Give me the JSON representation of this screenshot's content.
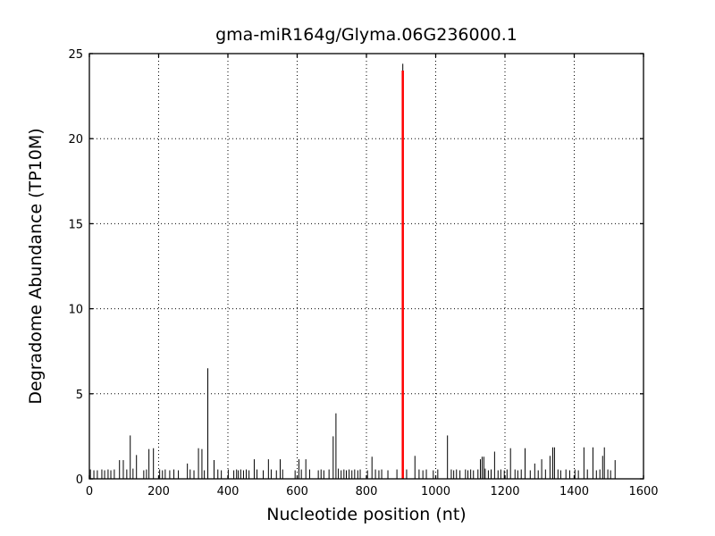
{
  "figure": {
    "title": "gma-miR164g/Glyma.06G236000.1",
    "xlabel": "Nucleotide position (nt)",
    "ylabel": "Degradome Abundance (TP10M)"
  },
  "chart_data": {
    "type": "bar",
    "title": "gma-miR164g/Glyma.06G236000.1",
    "xlabel": "Nucleotide position (nt)",
    "ylabel": "Degradome Abundance (TP10M)",
    "xlim": [
      0,
      1600
    ],
    "ylim": [
      0,
      25
    ],
    "x_ticks": [
      0,
      200,
      400,
      600,
      800,
      1000,
      1200,
      1400,
      1600
    ],
    "y_ticks": [
      0,
      5,
      10,
      15,
      20,
      25
    ],
    "grid": true,
    "grid_style": "dotted",
    "bar_color": "#000000",
    "axis_color": "#000000",
    "background_color": "#ffffff",
    "highlight_color": "#ff0000",
    "highlight": {
      "x": 905,
      "value": 24.0,
      "black_tip_value": 24.4
    },
    "spikes": [
      [
        3,
        0.55
      ],
      [
        13,
        0.5
      ],
      [
        23,
        0.5
      ],
      [
        36,
        0.55
      ],
      [
        44,
        0.5
      ],
      [
        54,
        0.55
      ],
      [
        62,
        0.5
      ],
      [
        72,
        0.55
      ],
      [
        87,
        1.1
      ],
      [
        98,
        1.1
      ],
      [
        108,
        0.55
      ],
      [
        118,
        2.55
      ],
      [
        126,
        0.6
      ],
      [
        136,
        1.4
      ],
      [
        157,
        0.5
      ],
      [
        165,
        0.55
      ],
      [
        172,
        1.75
      ],
      [
        185,
        1.8
      ],
      [
        203,
        0.55
      ],
      [
        211,
        0.5
      ],
      [
        219,
        0.55
      ],
      [
        232,
        0.5
      ],
      [
        244,
        0.55
      ],
      [
        257,
        0.5
      ],
      [
        283,
        0.9
      ],
      [
        291,
        0.55
      ],
      [
        302,
        0.5
      ],
      [
        315,
        1.8
      ],
      [
        325,
        1.75
      ],
      [
        332,
        0.5
      ],
      [
        342,
        6.5
      ],
      [
        360,
        1.1
      ],
      [
        371,
        0.55
      ],
      [
        381,
        0.5
      ],
      [
        401,
        0.55
      ],
      [
        417,
        0.5
      ],
      [
        425,
        0.55
      ],
      [
        430,
        0.5
      ],
      [
        437,
        0.55
      ],
      [
        445,
        0.5
      ],
      [
        453,
        0.55
      ],
      [
        461,
        0.5
      ],
      [
        476,
        1.15
      ],
      [
        484,
        0.55
      ],
      [
        502,
        0.5
      ],
      [
        517,
        1.15
      ],
      [
        525,
        0.55
      ],
      [
        540,
        0.5
      ],
      [
        551,
        1.15
      ],
      [
        558,
        0.55
      ],
      [
        594,
        0.5
      ],
      [
        605,
        1.15
      ],
      [
        612,
        0.55
      ],
      [
        625,
        1.15
      ],
      [
        636,
        0.55
      ],
      [
        661,
        0.5
      ],
      [
        669,
        0.55
      ],
      [
        677,
        0.5
      ],
      [
        692,
        0.55
      ],
      [
        704,
        2.5
      ],
      [
        712,
        3.85
      ],
      [
        719,
        0.6
      ],
      [
        727,
        0.5
      ],
      [
        735,
        0.55
      ],
      [
        742,
        0.5
      ],
      [
        750,
        0.55
      ],
      [
        758,
        0.5
      ],
      [
        766,
        0.55
      ],
      [
        775,
        0.5
      ],
      [
        782,
        0.55
      ],
      [
        803,
        0.5
      ],
      [
        816,
        1.3
      ],
      [
        826,
        0.55
      ],
      [
        836,
        0.5
      ],
      [
        844,
        0.55
      ],
      [
        862,
        0.5
      ],
      [
        888,
        0.55
      ],
      [
        905,
        24.4
      ],
      [
        916,
        0.55
      ],
      [
        940,
        1.35
      ],
      [
        952,
        0.55
      ],
      [
        963,
        0.5
      ],
      [
        973,
        0.55
      ],
      [
        993,
        0.5
      ],
      [
        1006,
        0.55
      ],
      [
        1034,
        2.55
      ],
      [
        1045,
        0.55
      ],
      [
        1052,
        0.5
      ],
      [
        1060,
        0.55
      ],
      [
        1070,
        0.5
      ],
      [
        1086,
        0.55
      ],
      [
        1093,
        0.5
      ],
      [
        1101,
        0.55
      ],
      [
        1109,
        0.5
      ],
      [
        1122,
        0.55
      ],
      [
        1129,
        1.15
      ],
      [
        1134,
        1.3
      ],
      [
        1139,
        1.3
      ],
      [
        1143,
        0.6
      ],
      [
        1152,
        0.5
      ],
      [
        1160,
        0.55
      ],
      [
        1170,
        1.6
      ],
      [
        1180,
        0.5
      ],
      [
        1188,
        0.55
      ],
      [
        1198,
        0.5
      ],
      [
        1206,
        0.55
      ],
      [
        1216,
        1.8
      ],
      [
        1229,
        0.55
      ],
      [
        1237,
        0.5
      ],
      [
        1247,
        0.55
      ],
      [
        1258,
        1.8
      ],
      [
        1273,
        0.5
      ],
      [
        1286,
        0.9
      ],
      [
        1296,
        0.5
      ],
      [
        1306,
        1.15
      ],
      [
        1317,
        0.55
      ],
      [
        1330,
        1.35
      ],
      [
        1338,
        1.85
      ],
      [
        1343,
        1.85
      ],
      [
        1353,
        0.55
      ],
      [
        1361,
        0.5
      ],
      [
        1376,
        0.55
      ],
      [
        1387,
        0.5
      ],
      [
        1402,
        0.55
      ],
      [
        1412,
        0.5
      ],
      [
        1428,
        1.85
      ],
      [
        1438,
        0.55
      ],
      [
        1454,
        1.85
      ],
      [
        1464,
        0.5
      ],
      [
        1474,
        0.55
      ],
      [
        1482,
        1.35
      ],
      [
        1487,
        1.85
      ],
      [
        1497,
        0.55
      ],
      [
        1505,
        0.5
      ],
      [
        1518,
        1.1
      ]
    ]
  }
}
